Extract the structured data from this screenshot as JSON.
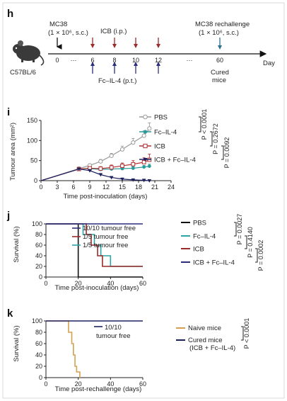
{
  "panel_h": {
    "letter": "h",
    "mouse_label": "C57BL/6",
    "axis_label": "Day",
    "ticks": [
      "0",
      "···",
      "6",
      "8",
      "10",
      "12",
      "···",
      "60"
    ],
    "mc38_title": "MC38",
    "mc38_dose": "(1 × 10⁶, s.c.)",
    "icb_label": "ICB (i.p.)",
    "fc_label": "Fc–IL-4 (p.t.)",
    "rechallenge_title": "MC38 rechallenge",
    "rechallenge_dose": "(1 × 10⁶, s.c.)",
    "cured_line1": "Cured",
    "cured_line2": "mice",
    "icb_days": [
      6,
      8,
      10,
      12
    ],
    "fc_days": [
      6,
      8,
      10,
      12
    ],
    "colors": {
      "icb_arrow": "#9b2a2a",
      "fc_arrow": "#2b2f7a",
      "rechallenge_arrow": "#2d6f8e",
      "mc38_arrow": "#111111"
    }
  },
  "chart_data": [
    {
      "panel": "i",
      "type": "line",
      "ylabel": "Tumour area (mm²)",
      "xlabel": "Time post-inoculation (days)",
      "xlim": [
        0,
        24
      ],
      "ylim": [
        0,
        150
      ],
      "xticks": [
        0,
        3,
        6,
        9,
        12,
        15,
        18,
        21,
        24
      ],
      "yticks": [
        0,
        50,
        100,
        150
      ],
      "series": [
        {
          "name": "PBS",
          "color": "#9a9a9a",
          "marker": "open-circle",
          "x": [
            0,
            7,
            9,
            11,
            13,
            15,
            17,
            19,
            20
          ],
          "y": [
            0,
            30,
            38,
            48,
            62,
            78,
            95,
            112,
            130
          ],
          "err": [
            0,
            3,
            4,
            5,
            6,
            8,
            10,
            12,
            14
          ]
        },
        {
          "name": "Fc–IL-4",
          "color": "#2a9a9a",
          "marker": "filled-circle",
          "x": [
            0,
            7,
            9,
            11,
            13,
            15,
            17,
            19,
            20
          ],
          "y": [
            0,
            29,
            30,
            28,
            29,
            30,
            31,
            34,
            36
          ],
          "err": [
            0,
            2,
            3,
            3,
            3,
            3,
            4,
            4,
            5
          ]
        },
        {
          "name": "ICB",
          "color": "#b03030",
          "marker": "open-square",
          "x": [
            0,
            7,
            9,
            11,
            13,
            15,
            17,
            19,
            20
          ],
          "y": [
            0,
            29,
            31,
            30,
            33,
            37,
            41,
            46,
            52
          ],
          "err": [
            0,
            3,
            4,
            5,
            6,
            7,
            9,
            11,
            14
          ]
        },
        {
          "name": "ICB + Fc–IL-4",
          "color": "#1d2060",
          "marker": "filled-triangle",
          "x": [
            0,
            7,
            9,
            11,
            13,
            15,
            17,
            19,
            20
          ],
          "y": [
            0,
            29,
            25,
            15,
            8,
            4,
            2,
            1,
            0
          ],
          "err": [
            0,
            2,
            3,
            3,
            2,
            2,
            1,
            1,
            0
          ]
        }
      ],
      "stats": [
        {
          "label": "P < 0.0001",
          "between": [
            "PBS",
            "Fc–IL-4"
          ]
        },
        {
          "label": "P = 0.2672",
          "between": [
            "Fc–IL-4",
            "ICB"
          ]
        },
        {
          "label": "P = 0.0092",
          "between": [
            "ICB",
            "ICB + Fc–IL-4"
          ]
        }
      ]
    },
    {
      "panel": "j",
      "type": "line",
      "ylabel": "Survival (%)",
      "xlabel": "Time post-inoculation (days)",
      "xlim": [
        0,
        60
      ],
      "ylim": [
        0,
        100
      ],
      "xticks": [
        0,
        20,
        40,
        60
      ],
      "yticks": [
        0,
        20,
        40,
        60,
        80,
        100
      ],
      "series": [
        {
          "name": "PBS",
          "color": "#111111",
          "x": [
            0,
            20,
            20,
            60
          ],
          "y": [
            100,
            100,
            0,
            0
          ]
        },
        {
          "name": "Fc–IL-4",
          "color": "#2aa6a6",
          "x": [
            0,
            23,
            23,
            30,
            30,
            34,
            34,
            40,
            40,
            60
          ],
          "y": [
            100,
            100,
            80,
            80,
            60,
            60,
            40,
            40,
            20,
            20
          ]
        },
        {
          "name": "ICB",
          "color": "#9b2a2a",
          "x": [
            0,
            25,
            25,
            28,
            28,
            32,
            32,
            35,
            35,
            60
          ],
          "y": [
            100,
            100,
            80,
            80,
            60,
            60,
            40,
            40,
            20,
            20
          ]
        },
        {
          "name": "ICB + Fc–IL-4",
          "color": "#2b2f7a",
          "x": [
            0,
            60
          ],
          "y": [
            100,
            100
          ]
        }
      ],
      "annotations": [
        {
          "text": "10/10 tumour free",
          "color": "#2b2f7a"
        },
        {
          "text": "1/5 tumour free",
          "color": "#9b2a2a"
        },
        {
          "text": "1/5 tumour free",
          "color": "#2aa6a6"
        }
      ],
      "stats": [
        {
          "label": "P = 0.0027",
          "between": [
            "PBS",
            "Fc–IL-4"
          ]
        },
        {
          "label": "P = 0.4140",
          "between": [
            "Fc–IL-4",
            "ICB"
          ]
        },
        {
          "label": "P = 0.0002",
          "between": [
            "ICB",
            "ICB + Fc–IL-4"
          ]
        }
      ]
    },
    {
      "panel": "k",
      "type": "line",
      "ylabel": "Survival (%)",
      "xlabel": "Time post-rechallenge (days)",
      "xlim": [
        0,
        60
      ],
      "ylim": [
        0,
        100
      ],
      "xticks": [
        0,
        20,
        40,
        60
      ],
      "yticks": [
        0,
        20,
        40,
        60,
        80,
        100
      ],
      "series": [
        {
          "name": "Naive mice",
          "color": "#d4a050",
          "x": [
            0,
            14,
            14,
            16,
            16,
            17,
            17,
            18,
            18,
            19,
            19,
            21,
            21
          ],
          "y": [
            100,
            100,
            80,
            80,
            60,
            60,
            40,
            40,
            20,
            20,
            10,
            10,
            0
          ]
        },
        {
          "name": "Cured mice",
          "name_line2": "(ICB + Fc–IL-4)",
          "color": "#1d2060",
          "x": [
            0,
            60
          ],
          "y": [
            100,
            100
          ]
        }
      ],
      "annotations": [
        {
          "text_line1": "10/10",
          "text_line2": "tumour free",
          "color": "#1d2060"
        }
      ],
      "stats": [
        {
          "label": "P < 0.0001",
          "between": [
            "Naive mice",
            "Cured mice"
          ]
        }
      ]
    }
  ]
}
